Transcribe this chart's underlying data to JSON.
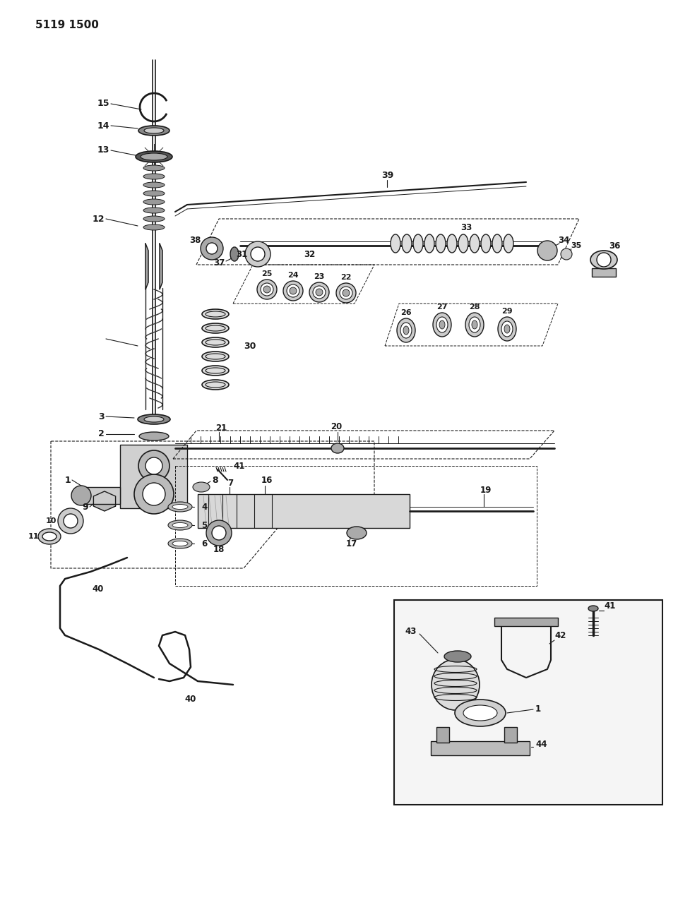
{
  "title": "5119 1500",
  "bg_color": "#ffffff",
  "lc": "#1a1a1a",
  "fig_width": 9.77,
  "fig_height": 12.75,
  "dpi": 100
}
